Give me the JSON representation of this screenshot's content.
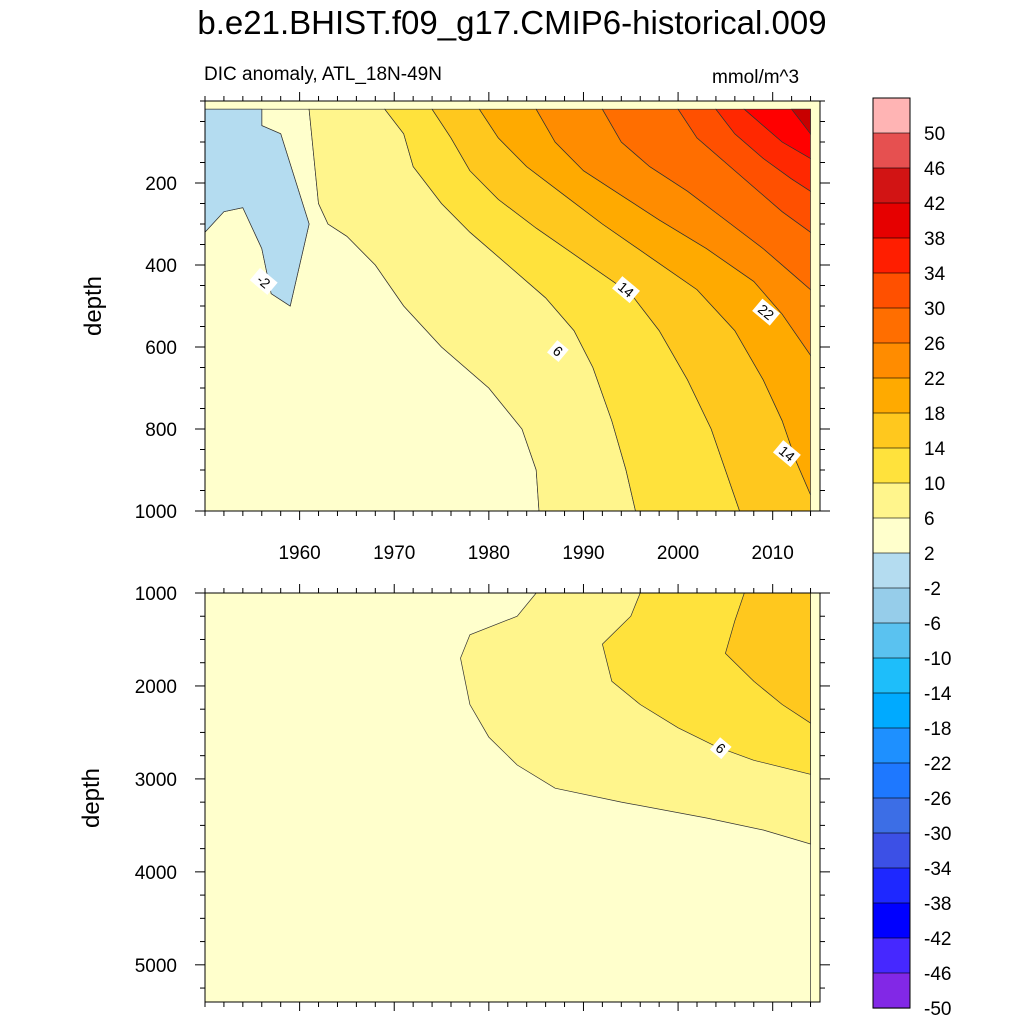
{
  "figure": {
    "title": "b.e21.BHIST.f09_g17.CMIP6-historical.009",
    "subtitle": "DIC anomaly, ATL_18N-49N",
    "units": "mmol/m^3"
  },
  "chart_data": [
    {
      "type": "contour",
      "panel": "upper",
      "xlabel": "",
      "ylabel": "depth",
      "xlim": [
        1950,
        2015
      ],
      "ylim": [
        1000,
        0
      ],
      "x_ticks": [
        1960,
        1970,
        1980,
        1990,
        2000,
        2010
      ],
      "y_ticks": [
        200,
        400,
        600,
        800,
        1000
      ],
      "contour_labels": [
        {
          "text": "-2",
          "x": 1956.2,
          "y": 440
        },
        {
          "text": "6",
          "x": 1987.3,
          "y": 610
        },
        {
          "text": "14",
          "x": 1994.5,
          "y": 460
        },
        {
          "text": "22",
          "x": 2009.3,
          "y": 515
        },
        {
          "text": "14",
          "x": 2011.5,
          "y": 860
        }
      ],
      "bands": [
        {
          "level": "-2..2",
          "color": "#FFFFCC",
          "boundary": [
            [
              1950,
              20
            ],
            [
              1954,
              20
            ],
            [
              1956,
              20
            ],
            [
              1956,
              60
            ],
            [
              1958,
              80
            ],
            [
              1961,
              300
            ],
            [
              1959,
              500
            ],
            [
              1957,
              470
            ],
            [
              1956,
              360
            ],
            [
              1954,
              260
            ],
            [
              1952,
              270
            ],
            [
              1950,
              320
            ],
            [
              1950,
              1000
            ],
            [
              1985.3,
              1000
            ],
            [
              1985,
              900
            ],
            [
              1983.5,
              800
            ],
            [
              1980,
              700
            ],
            [
              1975,
              600
            ],
            [
              1971,
              500
            ],
            [
              1968,
              400
            ],
            [
              1965,
              330
            ],
            [
              1963,
              300
            ],
            [
              1962,
              250
            ],
            [
              1961,
              20
            ]
          ]
        },
        {
          "level": "2..6",
          "color": "#FFF58C",
          "boundary": [
            [
              1961,
              20
            ],
            [
              1969,
              20
            ],
            [
              1971,
              80
            ],
            [
              1972,
              160
            ],
            [
              1975,
              250
            ],
            [
              1978,
              320
            ],
            [
              1982,
              400
            ],
            [
              1986,
              480
            ],
            [
              1989,
              560
            ],
            [
              1991,
              650
            ],
            [
              1993,
              780
            ],
            [
              1994.5,
              900
            ],
            [
              1995.5,
              1000
            ],
            [
              1985.3,
              1000
            ],
            [
              1985,
              900
            ],
            [
              1983.5,
              800
            ],
            [
              1980,
              700
            ],
            [
              1975,
              600
            ],
            [
              1971,
              500
            ],
            [
              1968,
              400
            ],
            [
              1965,
              330
            ],
            [
              1963,
              300
            ],
            [
              1962,
              250
            ]
          ]
        },
        {
          "level": "6..10",
          "color": "#FFE23C",
          "boundary": [
            [
              1969,
              20
            ],
            [
              1974,
              20
            ],
            [
              1976,
              90
            ],
            [
              1978,
              170
            ],
            [
              1981,
              240
            ],
            [
              1985,
              310
            ],
            [
              1990,
              390
            ],
            [
              1995,
              470
            ],
            [
              1998,
              560
            ],
            [
              2001,
              680
            ],
            [
              2003.5,
              800
            ],
            [
              2005,
              900
            ],
            [
              2006.5,
              1000
            ],
            [
              1995.5,
              1000
            ],
            [
              1994.5,
              900
            ],
            [
              1993,
              780
            ],
            [
              1991,
              650
            ],
            [
              1989,
              560
            ],
            [
              1986,
              480
            ],
            [
              1982,
              400
            ],
            [
              1978,
              320
            ],
            [
              1975,
              250
            ],
            [
              1972,
              160
            ],
            [
              1971,
              80
            ]
          ]
        },
        {
          "level": "10..14",
          "color": "#FFC81E",
          "boundary": [
            [
              1974,
              20
            ],
            [
              1979,
              20
            ],
            [
              1981,
              90
            ],
            [
              1984,
              160
            ],
            [
              1988,
              230
            ],
            [
              1992,
              300
            ],
            [
              1997,
              380
            ],
            [
              2002,
              460
            ],
            [
              2006,
              560
            ],
            [
              2009,
              680
            ],
            [
              2011,
              780
            ],
            [
              2012.5,
              880
            ],
            [
              2014,
              960
            ],
            [
              2014,
              1000
            ],
            [
              2006.5,
              1000
            ],
            [
              2005,
              900
            ],
            [
              2003.5,
              800
            ],
            [
              2001,
              680
            ],
            [
              1998,
              560
            ],
            [
              1995,
              470
            ],
            [
              1990,
              390
            ],
            [
              1985,
              310
            ],
            [
              1981,
              240
            ],
            [
              1978,
              170
            ],
            [
              1976,
              90
            ]
          ]
        },
        {
          "level": "14..18",
          "color": "#FFAA00",
          "boundary": [
            [
              1979,
              20
            ],
            [
              1985,
              20
            ],
            [
              1987,
              100
            ],
            [
              1990,
              170
            ],
            [
              1994,
              230
            ],
            [
              1998,
              290
            ],
            [
              2003,
              360
            ],
            [
              2008,
              440
            ],
            [
              2011,
              520
            ],
            [
              2014,
              620
            ],
            [
              2014,
              960
            ],
            [
              2012.5,
              880
            ],
            [
              2011,
              780
            ],
            [
              2009,
              680
            ],
            [
              2006,
              560
            ],
            [
              2002,
              460
            ],
            [
              1997,
              380
            ],
            [
              1992,
              300
            ],
            [
              1988,
              230
            ],
            [
              1984,
              160
            ],
            [
              1981,
              90
            ]
          ]
        },
        {
          "level": "18..22",
          "color": "#FF8C00",
          "boundary": [
            [
              1985,
              20
            ],
            [
              1992,
              20
            ],
            [
              1994,
              100
            ],
            [
              1997,
              160
            ],
            [
              2001,
              220
            ],
            [
              2005,
              290
            ],
            [
              2009,
              360
            ],
            [
              2012,
              420
            ],
            [
              2014,
              460
            ],
            [
              2014,
              620
            ],
            [
              2011,
              520
            ],
            [
              2008,
              440
            ],
            [
              2003,
              360
            ],
            [
              1998,
              290
            ],
            [
              1994,
              230
            ],
            [
              1990,
              170
            ],
            [
              1987,
              100
            ]
          ]
        },
        {
          "level": "22..26",
          "color": "#FF6E00",
          "boundary": [
            [
              1992,
              20
            ],
            [
              2000,
              20
            ],
            [
              2002,
              90
            ],
            [
              2005,
              150
            ],
            [
              2008,
              210
            ],
            [
              2011,
              270
            ],
            [
              2014,
              320
            ],
            [
              2014,
              460
            ],
            [
              2012,
              420
            ],
            [
              2009,
              360
            ],
            [
              2005,
              290
            ],
            [
              2001,
              220
            ],
            [
              1997,
              160
            ],
            [
              1994,
              100
            ]
          ]
        },
        {
          "level": "26..30",
          "color": "#FF5000",
          "boundary": [
            [
              2000,
              20
            ],
            [
              2004,
              20
            ],
            [
              2006,
              80
            ],
            [
              2009,
              140
            ],
            [
              2012,
              190
            ],
            [
              2014,
              220
            ],
            [
              2014,
              320
            ],
            [
              2011,
              270
            ],
            [
              2008,
              210
            ],
            [
              2005,
              150
            ],
            [
              2002,
              90
            ]
          ]
        },
        {
          "level": "30..34",
          "color": "#FF2800",
          "boundary": [
            [
              2004,
              20
            ],
            [
              2007,
              20
            ],
            [
              2009,
              60
            ],
            [
              2011,
              100
            ],
            [
              2014,
              140
            ],
            [
              2014,
              220
            ],
            [
              2012,
              190
            ],
            [
              2009,
              140
            ],
            [
              2006,
              80
            ]
          ]
        },
        {
          "level": "34..38",
          "color": "#FF0000",
          "boundary": [
            [
              2007,
              20
            ],
            [
              2014,
              20
            ],
            [
              2014,
              140
            ],
            [
              2011,
              100
            ],
            [
              2009,
              60
            ]
          ]
        },
        {
          "level": "38..42",
          "color": "#C80000",
          "boundary": [
            [
              2012,
              20
            ],
            [
              2014,
              20
            ],
            [
              2014,
              80
            ],
            [
              2013,
              50
            ]
          ]
        },
        {
          "level": "-6..-2",
          "color": "#B4DCF0",
          "boundary": [
            [
              1950,
              20
            ],
            [
              1956,
              20
            ],
            [
              1956,
              60
            ],
            [
              1958,
              80
            ],
            [
              1961,
              300
            ],
            [
              1959,
              500
            ],
            [
              1957,
              470
            ],
            [
              1956,
              360
            ],
            [
              1954,
              260
            ],
            [
              1952,
              270
            ],
            [
              1950,
              320
            ]
          ]
        }
      ]
    },
    {
      "type": "contour",
      "panel": "lower",
      "xlabel": "",
      "ylabel": "depth",
      "xlim": [
        1950,
        2015
      ],
      "ylim": [
        5400,
        1000
      ],
      "x_ticks": [
        1960,
        1970,
        1980,
        1990,
        2000,
        2010
      ],
      "y_ticks": [
        1000,
        2000,
        3000,
        4000,
        5000
      ],
      "contour_labels": [
        {
          "text": "6",
          "x": 2004.5,
          "y": 2670
        }
      ],
      "bands": [
        {
          "level": "-2..2",
          "color": "#FFFFCC",
          "boundary": [
            [
              1950,
              1000
            ],
            [
              2014,
              1000
            ],
            [
              2014,
              5400
            ],
            [
              1950,
              5400
            ]
          ]
        },
        {
          "level": "2..6",
          "color": "#FFF58C",
          "boundary": [
            [
              1985,
              1000
            ],
            [
              1983,
              1250
            ],
            [
              1978,
              1450
            ],
            [
              1977,
              1700
            ],
            [
              1978,
              2200
            ],
            [
              1980,
              2550
            ],
            [
              1983,
              2850
            ],
            [
              1987,
              3100
            ],
            [
              1994,
              3250
            ],
            [
              2003,
              3420
            ],
            [
              2009,
              3550
            ],
            [
              2014,
              3700
            ],
            [
              2014,
              1000
            ]
          ]
        },
        {
          "level": "6..10",
          "color": "#FFE23C",
          "boundary": [
            [
              1996,
              1000
            ],
            [
              1995,
              1250
            ],
            [
              1992,
              1550
            ],
            [
              1993,
              1950
            ],
            [
              1996,
              2200
            ],
            [
              2000,
              2450
            ],
            [
              2004,
              2650
            ],
            [
              2008,
              2800
            ],
            [
              2014,
              2950
            ],
            [
              2014,
              1000
            ]
          ]
        },
        {
          "level": "10..14",
          "color": "#FFC81E",
          "boundary": [
            [
              2007,
              1000
            ],
            [
              2006,
              1300
            ],
            [
              2005,
              1650
            ],
            [
              2008,
              1950
            ],
            [
              2011,
              2200
            ],
            [
              2014,
              2400
            ],
            [
              2014,
              1000
            ]
          ]
        }
      ]
    }
  ],
  "colorbar": {
    "colors": [
      "#FFB4B4",
      "#E65050",
      "#D21414",
      "#E60000",
      "#FF1E00",
      "#FF5000",
      "#FF6E00",
      "#FF8C00",
      "#FFAA00",
      "#FFC81E",
      "#FFE23C",
      "#FFF58C",
      "#FFFFCC",
      "#B4DCF0",
      "#96CDEA",
      "#5AC2F0",
      "#1EBEFA",
      "#00AAFF",
      "#1E90FF",
      "#1E78FF",
      "#3C6EE6",
      "#3C50E6",
      "#1E28FF",
      "#0000FF",
      "#4628FF",
      "#8228E6"
    ],
    "labels": [
      "50",
      "46",
      "42",
      "38",
      "34",
      "30",
      "26",
      "22",
      "18",
      "14",
      "10",
      "6",
      "2",
      "-2",
      "-6",
      "-10",
      "-14",
      "-18",
      "-22",
      "-26",
      "-30",
      "-34",
      "-38",
      "-42",
      "-46",
      "-50"
    ]
  }
}
